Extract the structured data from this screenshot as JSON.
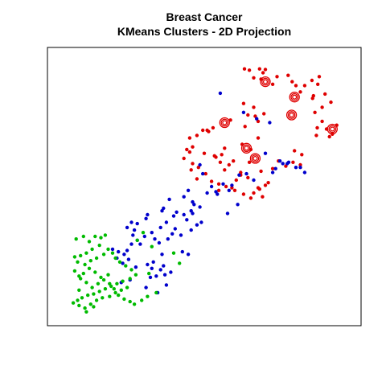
{
  "chart_data": {
    "type": "scatter",
    "title": "Breast Cancer",
    "subtitle": "KMeans Clusters - 2D Projection",
    "xlabel": "",
    "ylabel": "",
    "xlim": [
      0,
      10
    ],
    "ylim": [
      0,
      10
    ],
    "grid": false,
    "axes_shown": false,
    "legend": "none",
    "series": [
      {
        "color": "#DF0000",
        "x": [
          6.38,
          6.55,
          6.9,
          7.02,
          7.1,
          6.7,
          6.95,
          7.35,
          7.5,
          7.88,
          8.02,
          8.15,
          8.3,
          8.45,
          8.7,
          8.95,
          8.9,
          8.75,
          9.15,
          9.35,
          9.05,
          8.72,
          8.88,
          9.2,
          9.3,
          9.4,
          9.55,
          8.85,
          9.05,
          8.8,
          6.5,
          6.75,
          7.05,
          6.85,
          6.35,
          6.7,
          6.4,
          5.9,
          5.1,
          5.3,
          5.15,
          4.4,
          4.6,
          4.75,
          4.95,
          4.5,
          5.4,
          5.7,
          6.0,
          6.3,
          6.6,
          6.85,
          6.55,
          6.25,
          5.85,
          6.1,
          5.5,
          5.7,
          6.5,
          6.95,
          7.1,
          6.9,
          6.7,
          7.35,
          7.55,
          7.8,
          8.05,
          8.3,
          4.8,
          5.05,
          5.25,
          4.5,
          4.3,
          5.5,
          5.75,
          5.95,
          5.35,
          5.55,
          4.75,
          6.05,
          6.25,
          6.35,
          6.85,
          7.0,
          6.6,
          5.6,
          8.1,
          8.35,
          5.0,
          4.55,
          4.6,
          7.2
        ],
        "y": [
          9.6,
          9.55,
          9.6,
          9.45,
          9.58,
          9.25,
          9.2,
          9.0,
          9.3,
          9.35,
          9.1,
          8.95,
          8.7,
          8.95,
          9.15,
          9.3,
          9.0,
          8.55,
          8.62,
          8.3,
          8.1,
          8.45,
          7.3,
          7.25,
          6.95,
          7.05,
          7.4,
          7.0,
          7.55,
          7.9,
          7.8,
          7.75,
          7.85,
          7.55,
          8.25,
          8.1,
          7.35,
          7.6,
          7.2,
          7.3,
          7.15,
          6.45,
          6.55,
          7.0,
          7.2,
          6.9,
          6.15,
          6.5,
          6.0,
          6.65,
          6.45,
          6.9,
          5.95,
          5.55,
          5.85,
          5.25,
          5.1,
          5.65,
          5.35,
          5.6,
          5.05,
          4.9,
          4.75,
          5.7,
          6.0,
          5.8,
          5.95,
          5.85,
          5.75,
          5.5,
          5.2,
          6.35,
          6.1,
          4.85,
          5.0,
          4.95,
          6.2,
          5.95,
          5.3,
          4.85,
          5.45,
          4.7,
          4.95,
          4.6,
          4.55,
          6.25,
          6.4,
          6.25,
          6.3,
          5.65,
          5.9,
          5.15
        ],
        "markers": [
          {
            "x": 7.1,
            "y": 9.1
          },
          {
            "x": 8.1,
            "y": 8.5
          },
          {
            "x": 9.4,
            "y": 7.25
          },
          {
            "x": 8.0,
            "y": 7.8
          },
          {
            "x": 6.45,
            "y": 6.5
          },
          {
            "x": 6.75,
            "y": 6.1
          },
          {
            "x": 5.7,
            "y": 7.5
          }
        ]
      },
      {
        "color": "#0000CC",
        "x": [
          5.55,
          6.35,
          6.8,
          7.25,
          7.1,
          7.6,
          7.45,
          7.85,
          7.9,
          8.15,
          8.3,
          8.45,
          7.35,
          6.7,
          6.45,
          6.2,
          5.95,
          5.65,
          5.85,
          5.45,
          5.1,
          4.85,
          4.95,
          3.5,
          3.7,
          3.95,
          4.05,
          4.3,
          4.6,
          4.4,
          4.75,
          4.55,
          4.2,
          3.9,
          4.0,
          3.75,
          3.45,
          3.3,
          3.2,
          2.95,
          2.7,
          2.55,
          2.25,
          2.4,
          2.05,
          1.85,
          3.55,
          3.25,
          4.25,
          4.45,
          2.8,
          2.65,
          2.35,
          3.05,
          3.5,
          3.85,
          3.65,
          3.35,
          3.15,
          2.45,
          2.15,
          3.0,
          3.4,
          3.7,
          3.2,
          3.6,
          4.55,
          2.7,
          2.5,
          5.25,
          5.4,
          4.85,
          4.65,
          3.8,
          3.6,
          3.0,
          2.5,
          2.35,
          2.6,
          3.05,
          3.55,
          4.3,
          2.0,
          2.2,
          4.45,
          4.6,
          5.8,
          6.15,
          7.7,
          4.9
        ],
        "y": [
          8.65,
          7.9,
          7.65,
          7.5,
          6.3,
          6.0,
          5.7,
          5.9,
          5.95,
          5.75,
          5.75,
          5.55,
          5.55,
          5.25,
          5.5,
          5.45,
          5.05,
          5.1,
          4.85,
          4.7,
          4.75,
          5.85,
          5.5,
          3.4,
          3.6,
          3.85,
          4.0,
          3.9,
          3.95,
          3.7,
          3.5,
          3.3,
          3.1,
          3.15,
          3.35,
          2.95,
          2.8,
          2.95,
          3.2,
          3.05,
          2.9,
          3.1,
          2.35,
          2.15,
          2.45,
          2.55,
          2.35,
          2.05,
          2.45,
          2.35,
          2.75,
          1.85,
          2.5,
          1.95,
          1.75,
          1.65,
          1.55,
          1.5,
          1.45,
          1.35,
          1.25,
          1.05,
          0.85,
          1.15,
          1.8,
          1.9,
          4.05,
          3.55,
          2.75,
          5.0,
          4.8,
          4.2,
          4.3,
          4.5,
          4.15,
          3.75,
          3.6,
          3.4,
          3.3,
          3.9,
          4.05,
          4.6,
          2.2,
          2.0,
          4.85,
          4.4,
          3.95,
          4.3,
          5.9,
          3.6
        ],
        "markers": []
      },
      {
        "color": "#00BB00",
        "x": [
          0.6,
          0.85,
          1.05,
          1.25,
          1.45,
          1.6,
          1.4,
          1.15,
          0.95,
          0.75,
          0.55,
          0.65,
          0.9,
          1.1,
          1.3,
          1.55,
          1.7,
          1.85,
          1.95,
          2.1,
          2.3,
          2.5,
          2.65,
          2.45,
          2.2,
          2.0,
          1.8,
          1.6,
          1.4,
          1.2,
          1.0,
          0.8,
          0.65,
          0.5,
          0.7,
          0.9,
          1.1,
          1.3,
          1.5,
          1.75,
          1.95,
          2.15,
          2.35,
          1.7,
          1.45,
          1.25,
          1.05,
          0.85,
          0.7,
          0.55,
          0.75,
          0.95,
          1.15,
          1.35,
          1.55,
          1.75,
          1.9,
          2.05,
          2.25,
          2.45,
          2.6,
          2.85,
          3.05,
          3.35,
          3.2,
          3.95,
          4.15,
          2.9,
          3.1,
          2.7,
          1.2,
          0.95,
          0.7
        ],
        "y": [
          2.95,
          3.05,
          2.85,
          3.05,
          3.0,
          3.1,
          2.7,
          2.55,
          2.4,
          2.3,
          2.25,
          2.05,
          1.95,
          2.1,
          2.2,
          2.35,
          2.55,
          2.4,
          2.2,
          2.05,
          1.9,
          1.75,
          1.55,
          1.4,
          1.3,
          1.2,
          1.1,
          1.0,
          0.9,
          0.8,
          0.75,
          0.65,
          0.55,
          0.45,
          0.35,
          0.25,
          0.4,
          0.55,
          0.65,
          0.7,
          0.85,
          0.95,
          1.05,
          1.55,
          1.45,
          1.65,
          1.8,
          1.6,
          1.5,
          1.7,
          1.4,
          1.25,
          1.05,
          1.2,
          1.35,
          1.2,
          1.0,
          0.75,
          0.6,
          0.5,
          0.4,
          0.55,
          0.7,
          0.85,
          2.65,
          2.4,
          2.0,
          3.2,
          1.6,
          2.9,
          0.3,
          0.1,
          0.95
        ],
        "markers": []
      }
    ]
  }
}
